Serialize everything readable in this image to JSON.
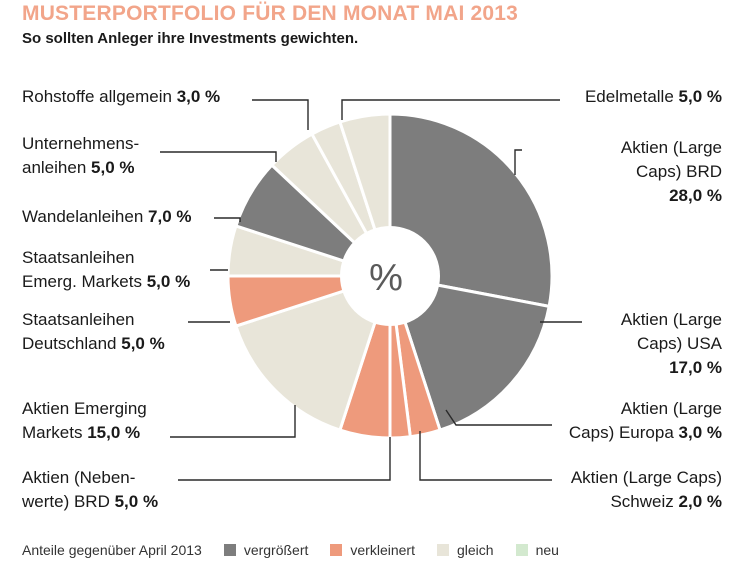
{
  "title": "MUSTERPORTFOLIO FÜR DEN MONAT MAI 2013",
  "subtitle": "So sollten Anleger ihre Investments gewichten.",
  "center_label": "%",
  "colors": {
    "vergroessert": "#7d7d7d",
    "verkleinert": "#ee9a7c",
    "gleich": "#e8e5d9",
    "neu": "#d3e9cf",
    "title": "#f2a58a"
  },
  "legend": {
    "intro": "Anteile gegenüber April 2013",
    "items": [
      {
        "label": "vergrößert",
        "status": "vergroessert"
      },
      {
        "label": "verkleinert",
        "status": "verkleinert"
      },
      {
        "label": "gleich",
        "status": "gleich"
      },
      {
        "label": "neu",
        "status": "neu"
      }
    ]
  },
  "chart_data": {
    "type": "pie",
    "title": "MUSTERPORTFOLIO FÜR DEN MONAT MAI 2013",
    "unit": "%",
    "slices": [
      {
        "name_lines": [
          "Aktien (Large",
          "Caps) BRD"
        ],
        "value": 28.0,
        "value_label": "28,0 %",
        "status": "vergroessert"
      },
      {
        "name_lines": [
          "Aktien (Large",
          "Caps) USA"
        ],
        "value": 17.0,
        "value_label": "17,0 %",
        "status": "vergroessert"
      },
      {
        "name_lines": [
          "Aktien (Large",
          "Caps) Europa"
        ],
        "value": 3.0,
        "value_label": "3,0 %",
        "status": "verkleinert"
      },
      {
        "name_lines": [
          "Aktien (Large Caps)",
          "Schweiz"
        ],
        "value": 2.0,
        "value_label": "2,0 %",
        "status": "verkleinert"
      },
      {
        "name_lines": [
          "Aktien (Neben-",
          "werte) BRD"
        ],
        "value": 5.0,
        "value_label": "5,0 %",
        "status": "verkleinert"
      },
      {
        "name_lines": [
          "Aktien Emerging",
          "Markets"
        ],
        "value": 15.0,
        "value_label": "15,0 %",
        "status": "gleich"
      },
      {
        "name_lines": [
          "Staatsanleihen",
          "Deutschland"
        ],
        "value": 5.0,
        "value_label": "5,0 %",
        "status": "verkleinert"
      },
      {
        "name_lines": [
          "Staatsanleihen",
          "Emerg. Markets"
        ],
        "value": 5.0,
        "value_label": "5,0 %",
        "status": "gleich"
      },
      {
        "name_lines": [
          "Wandelanleihen"
        ],
        "value": 7.0,
        "value_label": "7,0 %",
        "status": "vergroessert"
      },
      {
        "name_lines": [
          "Unternehmens-",
          "anleihen"
        ],
        "value": 5.0,
        "value_label": "5,0 %",
        "status": "gleich"
      },
      {
        "name_lines": [
          "Rohstoffe allgemein"
        ],
        "value": 3.0,
        "value_label": "3,0 %",
        "status": "gleich"
      },
      {
        "name_lines": [
          "Edelmetalle"
        ],
        "value": 5.0,
        "value_label": "5,0 %",
        "status": "gleich"
      }
    ]
  }
}
